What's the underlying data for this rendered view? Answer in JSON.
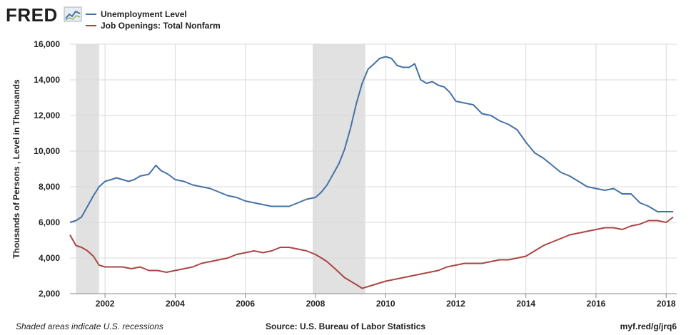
{
  "header": {
    "logo_text": "FRED"
  },
  "chart_data": {
    "type": "line",
    "ylabel": "Thousands of Persons , Level in Thousands",
    "xlim": [
      2001.0,
      2018.3
    ],
    "ylim": [
      2000,
      16000
    ],
    "yticks": [
      2000,
      4000,
      6000,
      8000,
      10000,
      12000,
      14000,
      16000
    ],
    "ytick_labels": [
      "2,000",
      "4,000",
      "6,000",
      "8,000",
      "10,000",
      "12,000",
      "14,000",
      "16,000"
    ],
    "xticks": [
      2002,
      2004,
      2006,
      2008,
      2010,
      2012,
      2014,
      2016,
      2018
    ],
    "xtick_labels": [
      "2002",
      "2004",
      "2006",
      "2008",
      "2010",
      "2012",
      "2014",
      "2016",
      "2018"
    ],
    "grid": true,
    "legend_position": "top-left",
    "recessions": [
      {
        "start": 2001.17,
        "end": 2001.83
      },
      {
        "start": 2007.92,
        "end": 2009.42
      }
    ],
    "series": [
      {
        "name": "Unemployment Level",
        "color": "#4572a7",
        "x": [
          2001.0,
          2001.17,
          2001.33,
          2001.5,
          2001.67,
          2001.83,
          2002.0,
          2002.17,
          2002.33,
          2002.5,
          2002.67,
          2002.83,
          2003.0,
          2003.25,
          2003.45,
          2003.6,
          2003.8,
          2004.0,
          2004.25,
          2004.5,
          2004.75,
          2005.0,
          2005.25,
          2005.5,
          2005.75,
          2006.0,
          2006.25,
          2006.5,
          2006.75,
          2007.0,
          2007.25,
          2007.5,
          2007.75,
          2008.0,
          2008.17,
          2008.33,
          2008.5,
          2008.67,
          2008.83,
          2009.0,
          2009.17,
          2009.33,
          2009.5,
          2009.67,
          2009.83,
          2010.0,
          2010.17,
          2010.33,
          2010.5,
          2010.67,
          2010.83,
          2011.0,
          2011.17,
          2011.33,
          2011.5,
          2011.67,
          2011.83,
          2012.0,
          2012.25,
          2012.5,
          2012.75,
          2013.0,
          2013.25,
          2013.5,
          2013.75,
          2014.0,
          2014.25,
          2014.5,
          2014.75,
          2015.0,
          2015.25,
          2015.5,
          2015.75,
          2016.0,
          2016.25,
          2016.5,
          2016.75,
          2017.0,
          2017.25,
          2017.5,
          2017.75,
          2018.0,
          2018.2
        ],
        "values": [
          6000,
          6100,
          6300,
          6900,
          7500,
          8000,
          8300,
          8400,
          8500,
          8400,
          8300,
          8400,
          8600,
          8700,
          9200,
          8900,
          8700,
          8400,
          8300,
          8100,
          8000,
          7900,
          7700,
          7500,
          7400,
          7200,
          7100,
          7000,
          6900,
          6900,
          6900,
          7100,
          7300,
          7400,
          7700,
          8100,
          8700,
          9300,
          10100,
          11300,
          12700,
          13800,
          14600,
          14900,
          15200,
          15300,
          15200,
          14800,
          14700,
          14700,
          14900,
          14000,
          13800,
          13900,
          13700,
          13600,
          13300,
          12800,
          12700,
          12600,
          12100,
          12000,
          11700,
          11500,
          11200,
          10500,
          9900,
          9600,
          9200,
          8800,
          8600,
          8300,
          8000,
          7900,
          7800,
          7900,
          7600,
          7600,
          7100,
          6900,
          6600,
          6600,
          6600
        ]
      },
      {
        "name": "Job Openings: Total Nonfarm",
        "color": "#aa4643",
        "x": [
          2001.0,
          2001.17,
          2001.33,
          2001.5,
          2001.67,
          2001.83,
          2002.0,
          2002.25,
          2002.5,
          2002.75,
          2003.0,
          2003.25,
          2003.5,
          2003.75,
          2004.0,
          2004.25,
          2004.5,
          2004.75,
          2005.0,
          2005.25,
          2005.5,
          2005.75,
          2006.0,
          2006.25,
          2006.5,
          2006.75,
          2007.0,
          2007.25,
          2007.5,
          2007.75,
          2008.0,
          2008.17,
          2008.33,
          2008.5,
          2008.67,
          2008.83,
          2009.0,
          2009.17,
          2009.33,
          2009.5,
          2009.67,
          2009.83,
          2010.0,
          2010.25,
          2010.5,
          2010.75,
          2011.0,
          2011.25,
          2011.5,
          2011.75,
          2012.0,
          2012.25,
          2012.5,
          2012.75,
          2013.0,
          2013.25,
          2013.5,
          2013.75,
          2014.0,
          2014.25,
          2014.5,
          2014.75,
          2015.0,
          2015.25,
          2015.5,
          2015.75,
          2016.0,
          2016.25,
          2016.5,
          2016.75,
          2017.0,
          2017.25,
          2017.5,
          2017.75,
          2018.0,
          2018.2
        ],
        "values": [
          5300,
          4700,
          4600,
          4400,
          4100,
          3600,
          3500,
          3500,
          3500,
          3400,
          3500,
          3300,
          3300,
          3200,
          3300,
          3400,
          3500,
          3700,
          3800,
          3900,
          4000,
          4200,
          4300,
          4400,
          4300,
          4400,
          4600,
          4600,
          4500,
          4400,
          4200,
          4000,
          3800,
          3500,
          3200,
          2900,
          2700,
          2500,
          2300,
          2400,
          2500,
          2600,
          2700,
          2800,
          2900,
          3000,
          3100,
          3200,
          3300,
          3500,
          3600,
          3700,
          3700,
          3700,
          3800,
          3900,
          3900,
          4000,
          4100,
          4400,
          4700,
          4900,
          5100,
          5300,
          5400,
          5500,
          5600,
          5700,
          5700,
          5600,
          5800,
          5900,
          6100,
          6100,
          6000,
          6300
        ]
      }
    ]
  },
  "footer": {
    "left": "Shaded areas indicate U.S. recessions",
    "center": "Source: U.S. Bureau of Labor Statistics",
    "right": "myf.red/g/jrq6"
  }
}
